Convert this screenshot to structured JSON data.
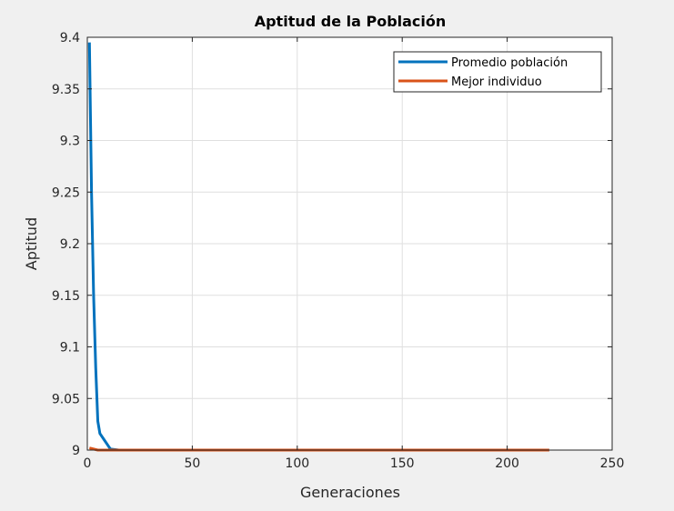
{
  "chart_data": {
    "type": "line",
    "title": "Aptitud de la Población",
    "xlabel": "Generaciones",
    "ylabel": "Aptitud",
    "xlim": [
      0,
      250
    ],
    "ylim": [
      9,
      9.4
    ],
    "x_ticks": [
      0,
      50,
      100,
      150,
      200,
      250
    ],
    "x_tick_labels": [
      "0",
      "50",
      "100",
      "150",
      "200",
      "250"
    ],
    "y_ticks": [
      9,
      9.05,
      9.1,
      9.15,
      9.2,
      9.25,
      9.3,
      9.35,
      9.4
    ],
    "y_tick_labels": [
      "9",
      "9.05",
      "9.1",
      "9.15",
      "9.2",
      "9.25",
      "9.3",
      "9.35",
      "9.4"
    ],
    "grid": true,
    "legend_position": "top-right",
    "series": [
      {
        "name": "Promedio población",
        "color": "#0072bd",
        "x": [
          1,
          2,
          3,
          4,
          5,
          6,
          8,
          10,
          11,
          15,
          30,
          60,
          100,
          150,
          200,
          220
        ],
        "y": [
          9.395,
          9.25,
          9.15,
          9.08,
          9.028,
          9.016,
          9.01,
          9.004,
          9.001,
          9.0,
          9.0,
          9.0,
          9.0,
          9.0,
          9.0,
          9.0
        ]
      },
      {
        "name": "Mejor individuo",
        "color": "#d95319",
        "x": [
          1,
          3,
          5,
          10,
          20,
          50,
          100,
          150,
          200,
          220
        ],
        "y": [
          9.002,
          9.001,
          9.0,
          9.0,
          9.0,
          9.0,
          9.0,
          9.0,
          9.0,
          9.0
        ]
      }
    ]
  }
}
